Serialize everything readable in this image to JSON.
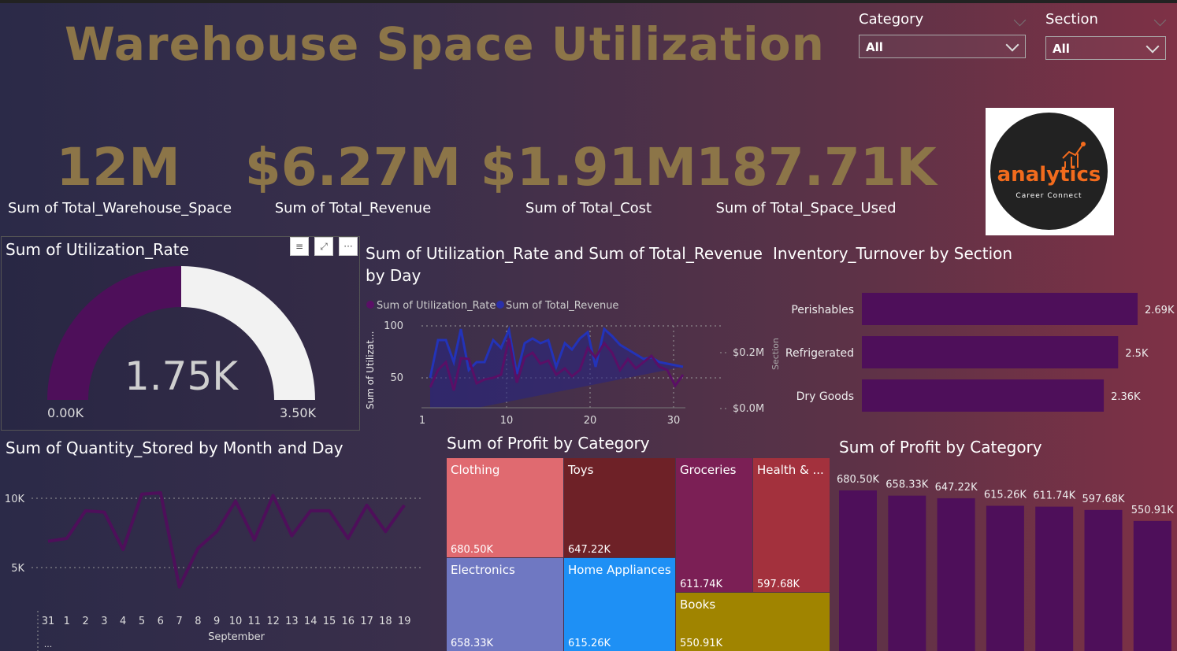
{
  "title": "Warehouse Space Utilization",
  "slicers": {
    "category": {
      "label": "Category",
      "value": "All"
    },
    "section": {
      "label": "Section",
      "value": "All"
    }
  },
  "kpis": [
    {
      "value": "12M",
      "label": "Sum of Total_Warehouse_Space"
    },
    {
      "value": "$6.27M",
      "label": "Sum of Total_Revenue"
    },
    {
      "value": "$1.91M",
      "label": "Sum of Total_Cost"
    },
    {
      "value": "187.71K",
      "label": "Sum of Total_Space_Used"
    }
  ],
  "logo": {
    "word": "analytics",
    "sub": "Career Connect"
  },
  "gauge": {
    "title": "Sum of Utilization_Rate",
    "value_label": "1.75K",
    "min_label": "0.00K",
    "max_label": "3.50K",
    "value": 1750,
    "max": 3500,
    "fill_color": "#4e0f5a",
    "track_color": "#f2f2f2"
  },
  "combo": {
    "title_line1": "Sum of Utilization_Rate and Sum of Total_Revenue",
    "title_line2": "by Day",
    "legend": [
      "Sum of Utilization_Rate",
      "Sum of Total_Revenue"
    ],
    "y_left_label": "Sum of Utilizat...",
    "y_left_ticks": [
      "100",
      "50"
    ],
    "y_right_ticks": [
      "$0.2M",
      "$0.0M"
    ],
    "x_ticks": [
      "10",
      "20",
      "30"
    ]
  },
  "turnover": {
    "title": "Inventory_Turnover by Section",
    "axis_label": "Section",
    "bars": [
      {
        "label": "Perishables",
        "value_label": "2.69K",
        "value": 2690
      },
      {
        "label": "Refrigerated",
        "value_label": "2.5K",
        "value": 2500
      },
      {
        "label": "Dry Goods",
        "value_label": "2.36K",
        "value": 2360
      }
    ],
    "color": "#4e0f5a"
  },
  "quantity": {
    "title": "Sum of Quantity_Stored by Month and Day",
    "y_ticks": [
      "10K",
      "5K"
    ],
    "x_labels": [
      "31",
      "1",
      "2",
      "3",
      "4",
      "5",
      "6",
      "7",
      "8",
      "9",
      "10",
      "11",
      "12",
      "13",
      "14",
      "15",
      "16",
      "17",
      "18",
      "19"
    ],
    "x_first_sub": "...",
    "month": "September",
    "values": [
      6900,
      7100,
      9100,
      9000,
      6300,
      10300,
      10400,
      3600,
      6400,
      7600,
      9800,
      7000,
      10200,
      7300,
      9100,
      9100,
      7100,
      9500,
      7600,
      9500
    ],
    "color": "#4e0f5a"
  },
  "treemap": {
    "title": "Sum of Profit by Category",
    "tiles": [
      {
        "label": "Clothing",
        "value": "680.50K",
        "color": "#e06a70"
      },
      {
        "label": "Toys",
        "value": "647.22K",
        "color": "#6e2127"
      },
      {
        "label": "Groceries",
        "value": "611.74K",
        "color": "#7b1f55"
      },
      {
        "label": "Health & ...",
        "value": "597.68K",
        "color": "#a3313d"
      },
      {
        "label": "Electronics",
        "value": "658.33K",
        "color": "#6f78c2"
      },
      {
        "label": "Home Appliances",
        "value": "615.26K",
        "color": "#1e90f5"
      },
      {
        "label": "Books",
        "value": "550.91K",
        "color": "#a08400"
      }
    ]
  },
  "profit_bars": {
    "title": "Sum of Profit by Category",
    "value_labels": [
      "680.50K",
      "658.33K",
      "647.22K",
      "615.26K",
      "611.74K",
      "597.68K",
      "550.91K"
    ],
    "values": [
      680.5,
      658.33,
      647.22,
      615.26,
      611.74,
      597.68,
      550.91
    ],
    "color": "#4e0f5a"
  }
}
